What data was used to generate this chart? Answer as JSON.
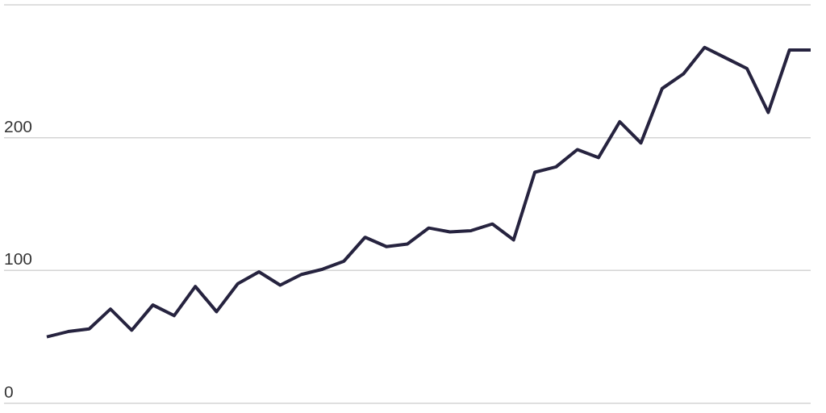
{
  "chart_data": {
    "type": "line",
    "categories": [
      null,
      null,
      null,
      null,
      null,
      null,
      null,
      null,
      null,
      null,
      null,
      null,
      null,
      null,
      null,
      null,
      null,
      null,
      null,
      null,
      null,
      null,
      null,
      null,
      null,
      null,
      null,
      null,
      null,
      null,
      null,
      null,
      null,
      null,
      null,
      null,
      null
    ],
    "values": [
      50,
      54,
      56,
      71,
      55,
      74,
      66,
      88,
      69,
      90,
      99,
      89,
      97,
      101,
      107,
      125,
      118,
      120,
      132,
      129,
      130,
      135,
      123,
      174,
      178,
      191,
      185,
      212,
      196,
      237,
      248,
      268,
      260,
      252,
      219,
      266,
      266
    ],
    "color": "#26233f",
    "ylim": [
      0,
      300
    ],
    "yticks": [
      0,
      100,
      200,
      {
        "value": 300,
        "label": null
      }
    ],
    "grid": "y",
    "tick_labels": "y",
    "marker": "none",
    "line_style": "solid"
  }
}
